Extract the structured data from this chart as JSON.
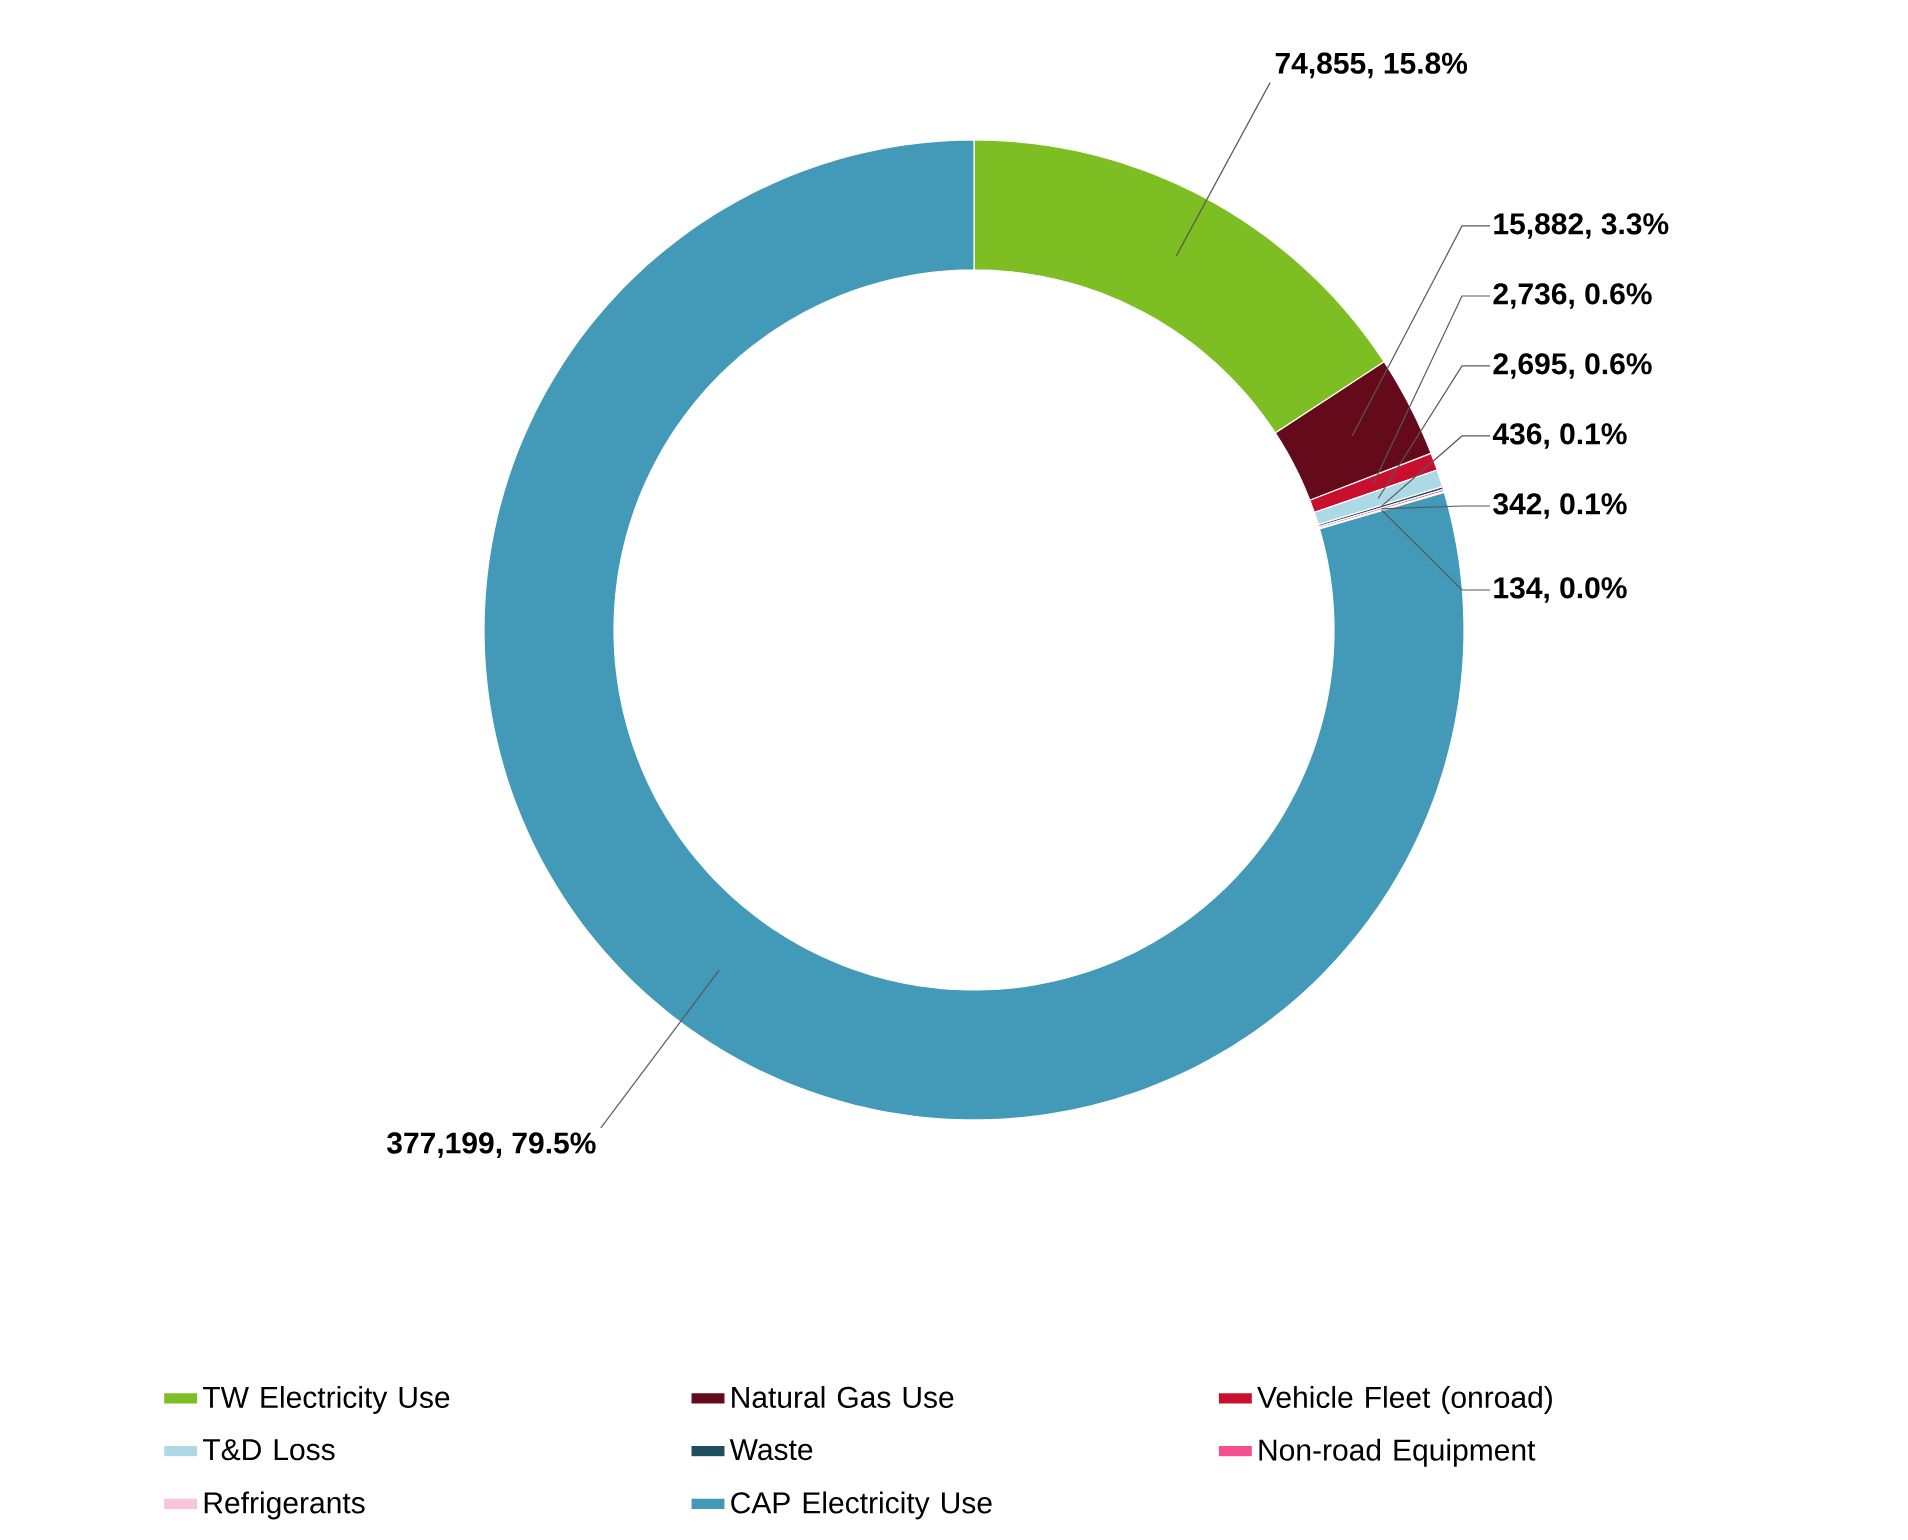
{
  "chart_data": {
    "type": "donut",
    "categories": [
      "TW Electricity Use",
      "Natural Gas Use",
      "Vehicle Fleet (onroad)",
      "T&D Loss",
      "Waste",
      "Non-road Equipment",
      "Refrigerants",
      "CAP Electricity Use"
    ],
    "values": [
      74855,
      15882,
      2736,
      2695,
      436,
      342,
      134,
      377199
    ],
    "colors": [
      "#7dbe22",
      "#650a1a",
      "#c8102e",
      "#add8e6",
      "#1f4e5f",
      "#f54d8e",
      "#f9c4d9",
      "#4399b8"
    ],
    "value_labels": [
      "74,855, 15.8%",
      "15,882, 3.3%",
      "2,736, 0.6%",
      "2,695, 0.6%",
      "436, 0.1%",
      "342, 0.1%",
      "134, 0.0%",
      "377,199, 79.5%"
    ],
    "legend": "bottom"
  }
}
